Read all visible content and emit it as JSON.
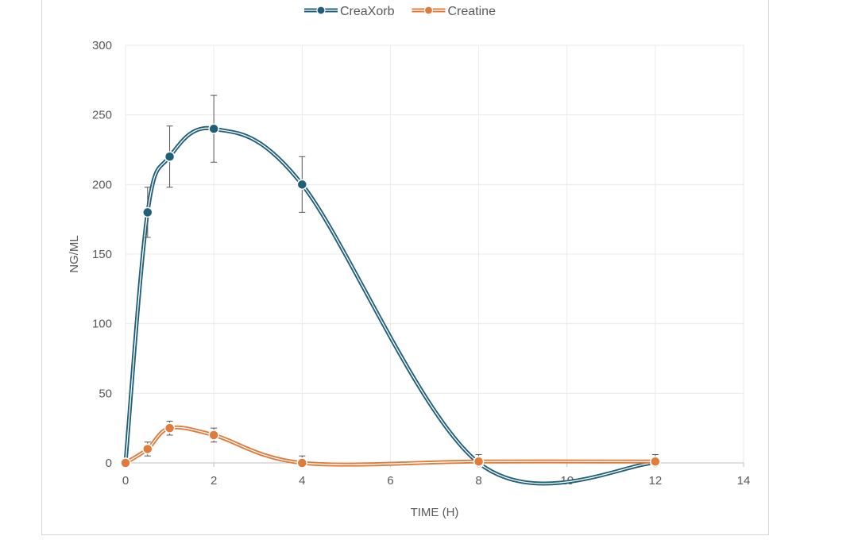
{
  "chart_data": {
    "type": "line",
    "xlabel": "TIME (H)",
    "ylabel": "NG/ML",
    "xlim": [
      0,
      14
    ],
    "ylim": [
      0,
      300
    ],
    "xticks": [
      "0",
      "2",
      "4",
      "6",
      "8",
      "10",
      "12",
      "14"
    ],
    "yticks": [
      "0",
      "50",
      "100",
      "150",
      "200",
      "250",
      "300"
    ],
    "grid": true,
    "legend_position": "top",
    "smooth": true,
    "series": [
      {
        "name": "CreaXorb",
        "color": "#1f5f7a",
        "points": [
          {
            "x": 0,
            "y": 0
          },
          {
            "x": 0.5,
            "y": 180,
            "err": 18
          },
          {
            "x": 1,
            "y": 220,
            "err": 22
          },
          {
            "x": 2,
            "y": 240,
            "err": 24
          },
          {
            "x": 4,
            "y": 200,
            "err": 20
          },
          {
            "x": 8,
            "y": 0
          },
          {
            "x": 12,
            "y": 0
          }
        ]
      },
      {
        "name": "Creatine",
        "color": "#e07b3a",
        "points": [
          {
            "x": 0,
            "y": 0
          },
          {
            "x": 0.5,
            "y": 10,
            "err": 5
          },
          {
            "x": 1,
            "y": 25,
            "err": 5
          },
          {
            "x": 2,
            "y": 20,
            "err": 5
          },
          {
            "x": 4,
            "y": 0,
            "err": 5
          },
          {
            "x": 8,
            "y": 1,
            "err": 5
          },
          {
            "x": 12,
            "y": 1,
            "err": 5
          }
        ]
      }
    ]
  }
}
